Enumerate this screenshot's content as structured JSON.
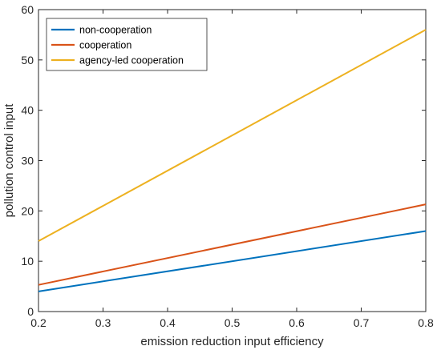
{
  "chart_data": {
    "type": "line",
    "xlabel": "emission reduction input efficiency",
    "ylabel": "pollution control input",
    "xlim": [
      0.2,
      0.8
    ],
    "ylim": [
      0,
      60
    ],
    "xticks": [
      0.2,
      0.3,
      0.4,
      0.5,
      0.6,
      0.7,
      0.8
    ],
    "yticks": [
      0,
      10,
      20,
      30,
      40,
      50,
      60
    ],
    "grid": false,
    "legend_position": "top-left",
    "series": [
      {
        "name": "non-cooperation",
        "color": "#0072BD",
        "x": [
          0.2,
          0.8
        ],
        "y": [
          4.0,
          16.0
        ]
      },
      {
        "name": "cooperation",
        "color": "#D95319",
        "x": [
          0.2,
          0.8
        ],
        "y": [
          5.3,
          21.3
        ]
      },
      {
        "name": "agency-led cooperation",
        "color": "#EDB120",
        "x": [
          0.2,
          0.8
        ],
        "y": [
          14.0,
          56.0
        ]
      }
    ]
  }
}
